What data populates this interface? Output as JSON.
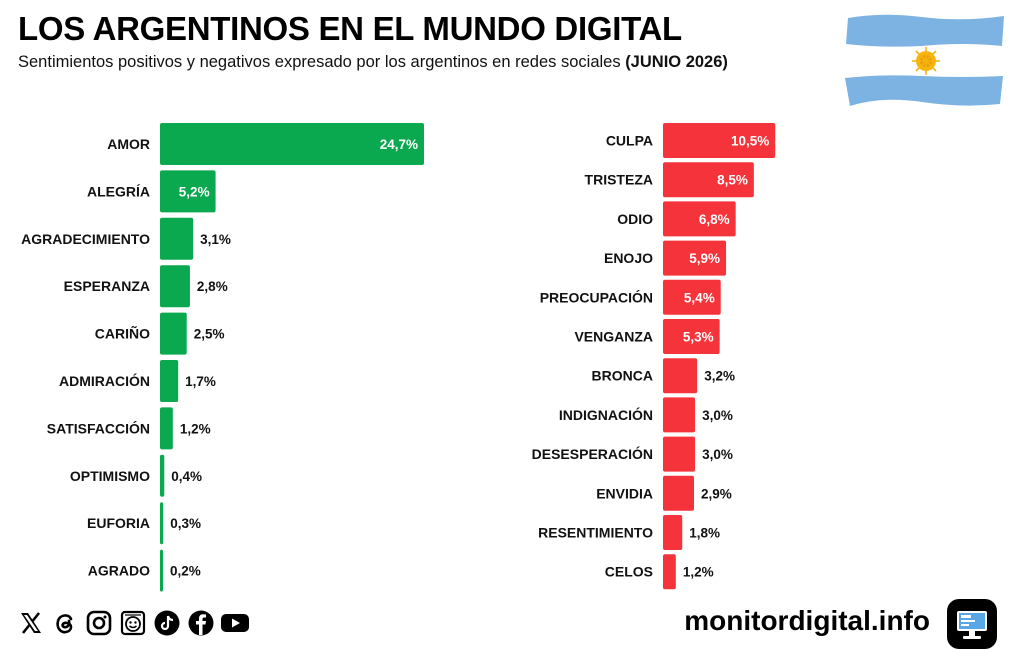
{
  "header": {
    "title": "LOS ARGENTINOS EN EL MUNDO DIGITAL",
    "subtitle": "Sentimientos positivos y negativos expresado por los argentinos en redes sociales",
    "subtitle_date": "(JUNIO 2026)"
  },
  "colors": {
    "positive": "#0aa84f",
    "negative": "#f4333b"
  },
  "chart_data": [
    {
      "type": "bar",
      "orientation": "horizontal",
      "categories": [
        "AMOR",
        "ALEGRÍA",
        "AGRADECIMIENTO",
        "ESPERANZA",
        "CARIÑO",
        "ADMIRACIÓN",
        "SATISFACCIÓN",
        "OPTIMISMO",
        "EUFORIA",
        "AGRADO"
      ],
      "values": [
        24.7,
        5.2,
        3.1,
        2.8,
        2.5,
        1.7,
        1.2,
        0.4,
        0.3,
        0.2
      ],
      "labels": [
        "24,7%",
        "5,2%",
        "3,1%",
        "2,8%",
        "2,5%",
        "1,7%",
        "1,2%",
        "0,4%",
        "0,3%",
        "0,2%"
      ],
      "xlim": [
        0,
        24.7
      ]
    },
    {
      "type": "bar",
      "orientation": "horizontal",
      "categories": [
        "CULPA",
        "TRISTEZA",
        "ODIO",
        "ENOJO",
        "PREOCUPACIÓN",
        "VENGANZA",
        "BRONCA",
        "INDIGNACIÓN",
        "DESESPERACIÓN",
        "ENVIDIA",
        "RESENTIMIENTO",
        "CELOS"
      ],
      "values": [
        10.5,
        8.5,
        6.8,
        5.9,
        5.4,
        5.3,
        3.2,
        3.0,
        3.0,
        2.9,
        1.8,
        1.2
      ],
      "labels": [
        "10,5%",
        "8,5%",
        "6,8%",
        "5,9%",
        "5,4%",
        "5,3%",
        "3,2%",
        "3,0%",
        "3,0%",
        "2,9%",
        "1,8%",
        "1,2%"
      ],
      "xlim": [
        0,
        24.7
      ]
    }
  ],
  "footer": {
    "brand": "monitordigital.info",
    "socials": [
      "x-icon",
      "threads-icon",
      "instagram-icon",
      "meme-icon",
      "tiktok-icon",
      "facebook-icon",
      "youtube-icon"
    ]
  }
}
